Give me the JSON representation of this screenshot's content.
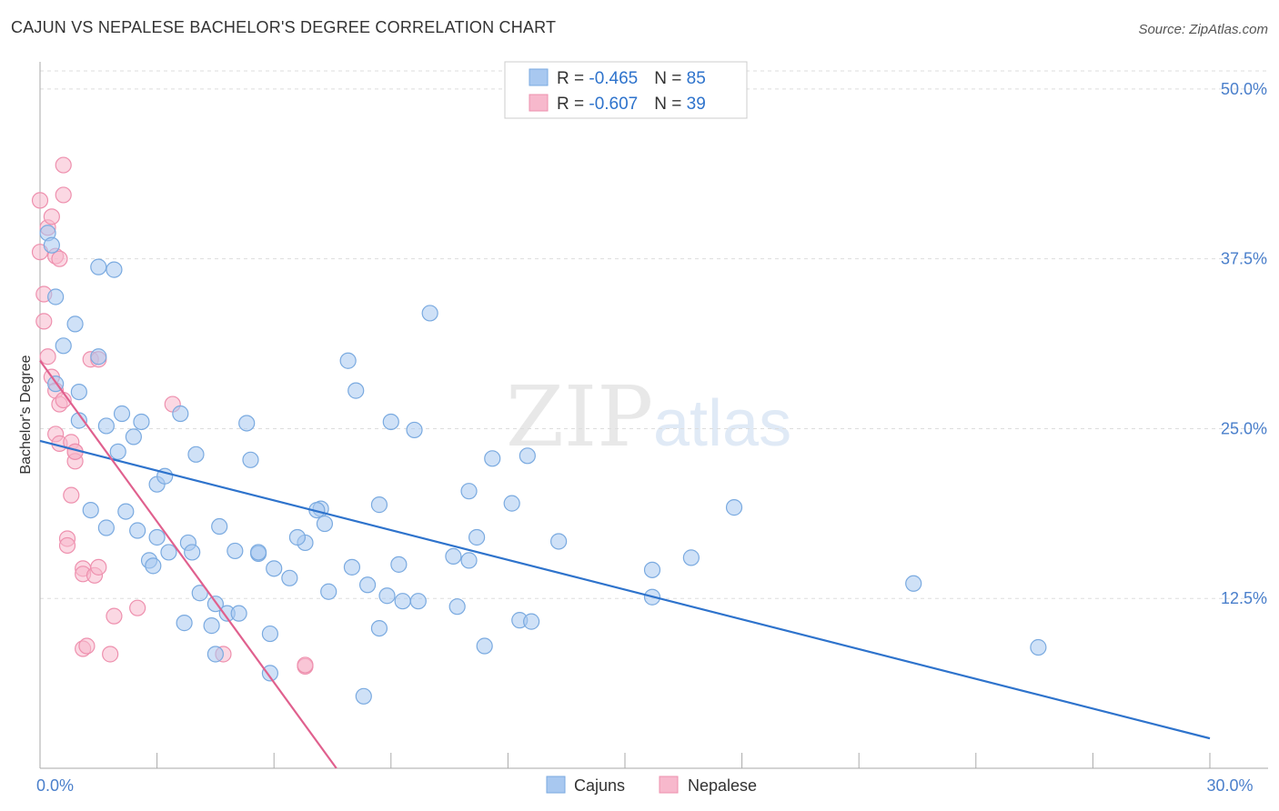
{
  "header": {
    "title": "CAJUN VS NEPALESE BACHELOR'S DEGREE CORRELATION CHART",
    "source": "Source: ZipAtlas.com"
  },
  "watermark": {
    "zip": "ZIP",
    "atlas": "atlas"
  },
  "colors": {
    "cajun_fill": "#a8c8f0",
    "cajun_stroke": "#7aaae0",
    "cajun_line": "#2e73cc",
    "nepalese_fill": "#f7b8cc",
    "nepalese_stroke": "#ee90ae",
    "nepalese_line": "#e0608e",
    "axis_text": "#4a7fcb",
    "grid": "#dddddd"
  },
  "chart_data": {
    "type": "scatter",
    "title": "CAJUN VS NEPALESE BACHELOR'S DEGREE CORRELATION CHART",
    "xlabel": "",
    "ylabel": "Bachelor's Degree",
    "xlim": [
      0,
      30
    ],
    "ylim": [
      0,
      52
    ],
    "x_tick_labels": [
      {
        "value": 0,
        "label": "0.0%"
      },
      {
        "value": 30,
        "label": "30.0%"
      }
    ],
    "y_tick_labels": [
      {
        "value": 12.5,
        "label": "12.5%"
      },
      {
        "value": 25,
        "label": "25.0%"
      },
      {
        "value": 37.5,
        "label": "37.5%"
      },
      {
        "value": 50,
        "label": "50.0%"
      }
    ],
    "legend": {
      "position": "top-center",
      "entries": [
        {
          "r_label": "R = ",
          "r_value": "-0.465",
          "n_label": "N = ",
          "n_value": "85"
        },
        {
          "r_label": "R = ",
          "r_value": "-0.607",
          "n_label": "N = ",
          "n_value": "39"
        }
      ]
    },
    "bottom_legend": [
      "Cajuns",
      "Nepalese"
    ],
    "series": [
      {
        "name": "Cajuns",
        "points": [
          [
            0.2,
            39.4
          ],
          [
            0.3,
            38.5
          ],
          [
            0.4,
            34.7
          ],
          [
            0.6,
            31.1
          ],
          [
            0.9,
            32.7
          ],
          [
            1.5,
            36.9
          ],
          [
            1.9,
            36.7
          ],
          [
            1.5,
            30.3
          ],
          [
            0.4,
            28.3
          ],
          [
            1.0,
            27.7
          ],
          [
            1.0,
            25.6
          ],
          [
            1.7,
            25.2
          ],
          [
            2.1,
            26.1
          ],
          [
            2.4,
            24.4
          ],
          [
            2.6,
            25.5
          ],
          [
            2.0,
            23.3
          ],
          [
            3.0,
            20.9
          ],
          [
            3.2,
            21.5
          ],
          [
            3.6,
            26.1
          ],
          [
            4.0,
            23.1
          ],
          [
            1.3,
            19.0
          ],
          [
            2.2,
            18.9
          ],
          [
            1.7,
            17.7
          ],
          [
            2.5,
            17.5
          ],
          [
            3.0,
            17.0
          ],
          [
            3.8,
            16.6
          ],
          [
            4.6,
            17.8
          ],
          [
            2.8,
            15.3
          ],
          [
            2.9,
            14.9
          ],
          [
            3.3,
            15.9
          ],
          [
            3.9,
            15.9
          ],
          [
            5.0,
            16.0
          ],
          [
            5.6,
            15.8
          ],
          [
            4.1,
            12.9
          ],
          [
            4.5,
            12.1
          ],
          [
            3.7,
            10.7
          ],
          [
            4.4,
            10.5
          ],
          [
            4.5,
            8.4
          ],
          [
            4.8,
            11.4
          ],
          [
            5.1,
            11.4
          ],
          [
            5.3,
            25.4
          ],
          [
            5.4,
            22.7
          ],
          [
            5.6,
            15.9
          ],
          [
            6.0,
            14.7
          ],
          [
            6.4,
            14.0
          ],
          [
            6.8,
            16.6
          ],
          [
            6.6,
            17.0
          ],
          [
            7.2,
            19.1
          ],
          [
            7.3,
            18.0
          ],
          [
            7.4,
            13.0
          ],
          [
            7.9,
            30.0
          ],
          [
            8.1,
            27.8
          ],
          [
            8.0,
            14.8
          ],
          [
            8.4,
            13.5
          ],
          [
            8.7,
            10.3
          ],
          [
            8.9,
            12.7
          ],
          [
            9.2,
            15.0
          ],
          [
            9.3,
            12.3
          ],
          [
            9.7,
            12.3
          ],
          [
            9.0,
            25.5
          ],
          [
            9.6,
            24.9
          ],
          [
            8.7,
            19.4
          ],
          [
            8.3,
            5.3
          ],
          [
            10.0,
            33.5
          ],
          [
            10.6,
            15.6
          ],
          [
            10.7,
            11.9
          ],
          [
            11.0,
            15.3
          ],
          [
            11.0,
            20.4
          ],
          [
            11.2,
            17.0
          ],
          [
            11.4,
            9.0
          ],
          [
            11.6,
            22.8
          ],
          [
            12.1,
            19.5
          ],
          [
            12.3,
            10.9
          ],
          [
            12.5,
            23.0
          ],
          [
            12.6,
            10.8
          ],
          [
            13.3,
            16.7
          ],
          [
            15.7,
            14.6
          ],
          [
            15.7,
            12.6
          ],
          [
            16.7,
            15.5
          ],
          [
            17.8,
            19.2
          ],
          [
            22.4,
            13.6
          ],
          [
            25.6,
            8.9
          ],
          [
            5.9,
            9.9
          ],
          [
            5.9,
            7.0
          ],
          [
            7.1,
            19.0
          ]
        ],
        "trend": {
          "x": [
            0,
            30
          ],
          "y": [
            24.1,
            2.2
          ]
        }
      },
      {
        "name": "Nepalese",
        "points": [
          [
            0.0,
            41.8
          ],
          [
            0.0,
            38.0
          ],
          [
            0.1,
            34.9
          ],
          [
            0.1,
            32.9
          ],
          [
            0.2,
            30.3
          ],
          [
            0.3,
            28.8
          ],
          [
            0.2,
            39.8
          ],
          [
            0.3,
            40.6
          ],
          [
            0.4,
            37.7
          ],
          [
            0.5,
            37.5
          ],
          [
            0.6,
            44.4
          ],
          [
            0.6,
            42.2
          ],
          [
            0.4,
            27.8
          ],
          [
            0.5,
            26.8
          ],
          [
            0.4,
            24.6
          ],
          [
            0.5,
            23.9
          ],
          [
            0.8,
            24.0
          ],
          [
            0.9,
            23.3
          ],
          [
            0.9,
            22.6
          ],
          [
            0.8,
            20.1
          ],
          [
            0.7,
            16.9
          ],
          [
            0.7,
            16.4
          ],
          [
            1.1,
            14.7
          ],
          [
            1.1,
            14.3
          ],
          [
            1.4,
            14.2
          ],
          [
            1.5,
            14.8
          ],
          [
            1.3,
            30.1
          ],
          [
            1.5,
            30.1
          ],
          [
            3.4,
            26.8
          ],
          [
            2.5,
            11.8
          ],
          [
            1.9,
            11.2
          ],
          [
            1.1,
            8.8
          ],
          [
            1.8,
            8.4
          ],
          [
            4.7,
            8.4
          ],
          [
            6.8,
            7.5
          ],
          [
            6.8,
            7.6
          ],
          [
            1.2,
            9.0
          ],
          [
            0.9,
            23.3
          ],
          [
            0.6,
            27.1
          ]
        ],
        "trend": {
          "x": [
            0,
            7.6
          ],
          "y": [
            30.0,
            0.0
          ]
        }
      }
    ]
  }
}
